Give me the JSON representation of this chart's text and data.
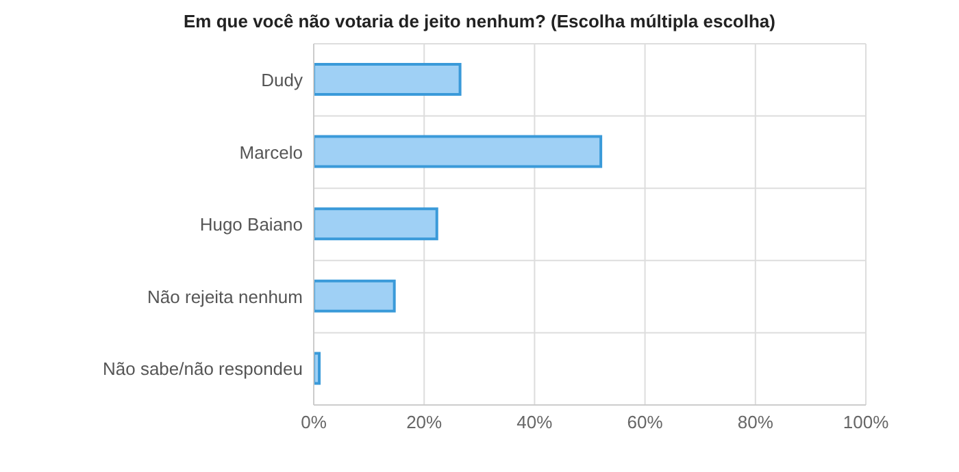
{
  "chart_data": {
    "type": "bar",
    "orientation": "horizontal",
    "title": "Em que você não votaria de jeito nenhum? (Escolha múltipla escolha)",
    "categories": [
      "Dudy",
      "Marcelo",
      "Hugo Baiano",
      "Não rejeita nenhum",
      "Não sabe/não respondeu"
    ],
    "values": [
      26.5,
      52,
      22.3,
      14.6,
      1
    ],
    "color": "#9fd0f5",
    "xlim": [
      0,
      100
    ],
    "xticks": [
      {
        "value": 0,
        "label": "0%"
      },
      {
        "value": 20,
        "label": "20%"
      },
      {
        "value": 40,
        "label": "40%"
      },
      {
        "value": 60,
        "label": "60%"
      },
      {
        "value": 80,
        "label": "80%"
      },
      {
        "value": 100,
        "label": "100%"
      }
    ],
    "grid": true
  }
}
